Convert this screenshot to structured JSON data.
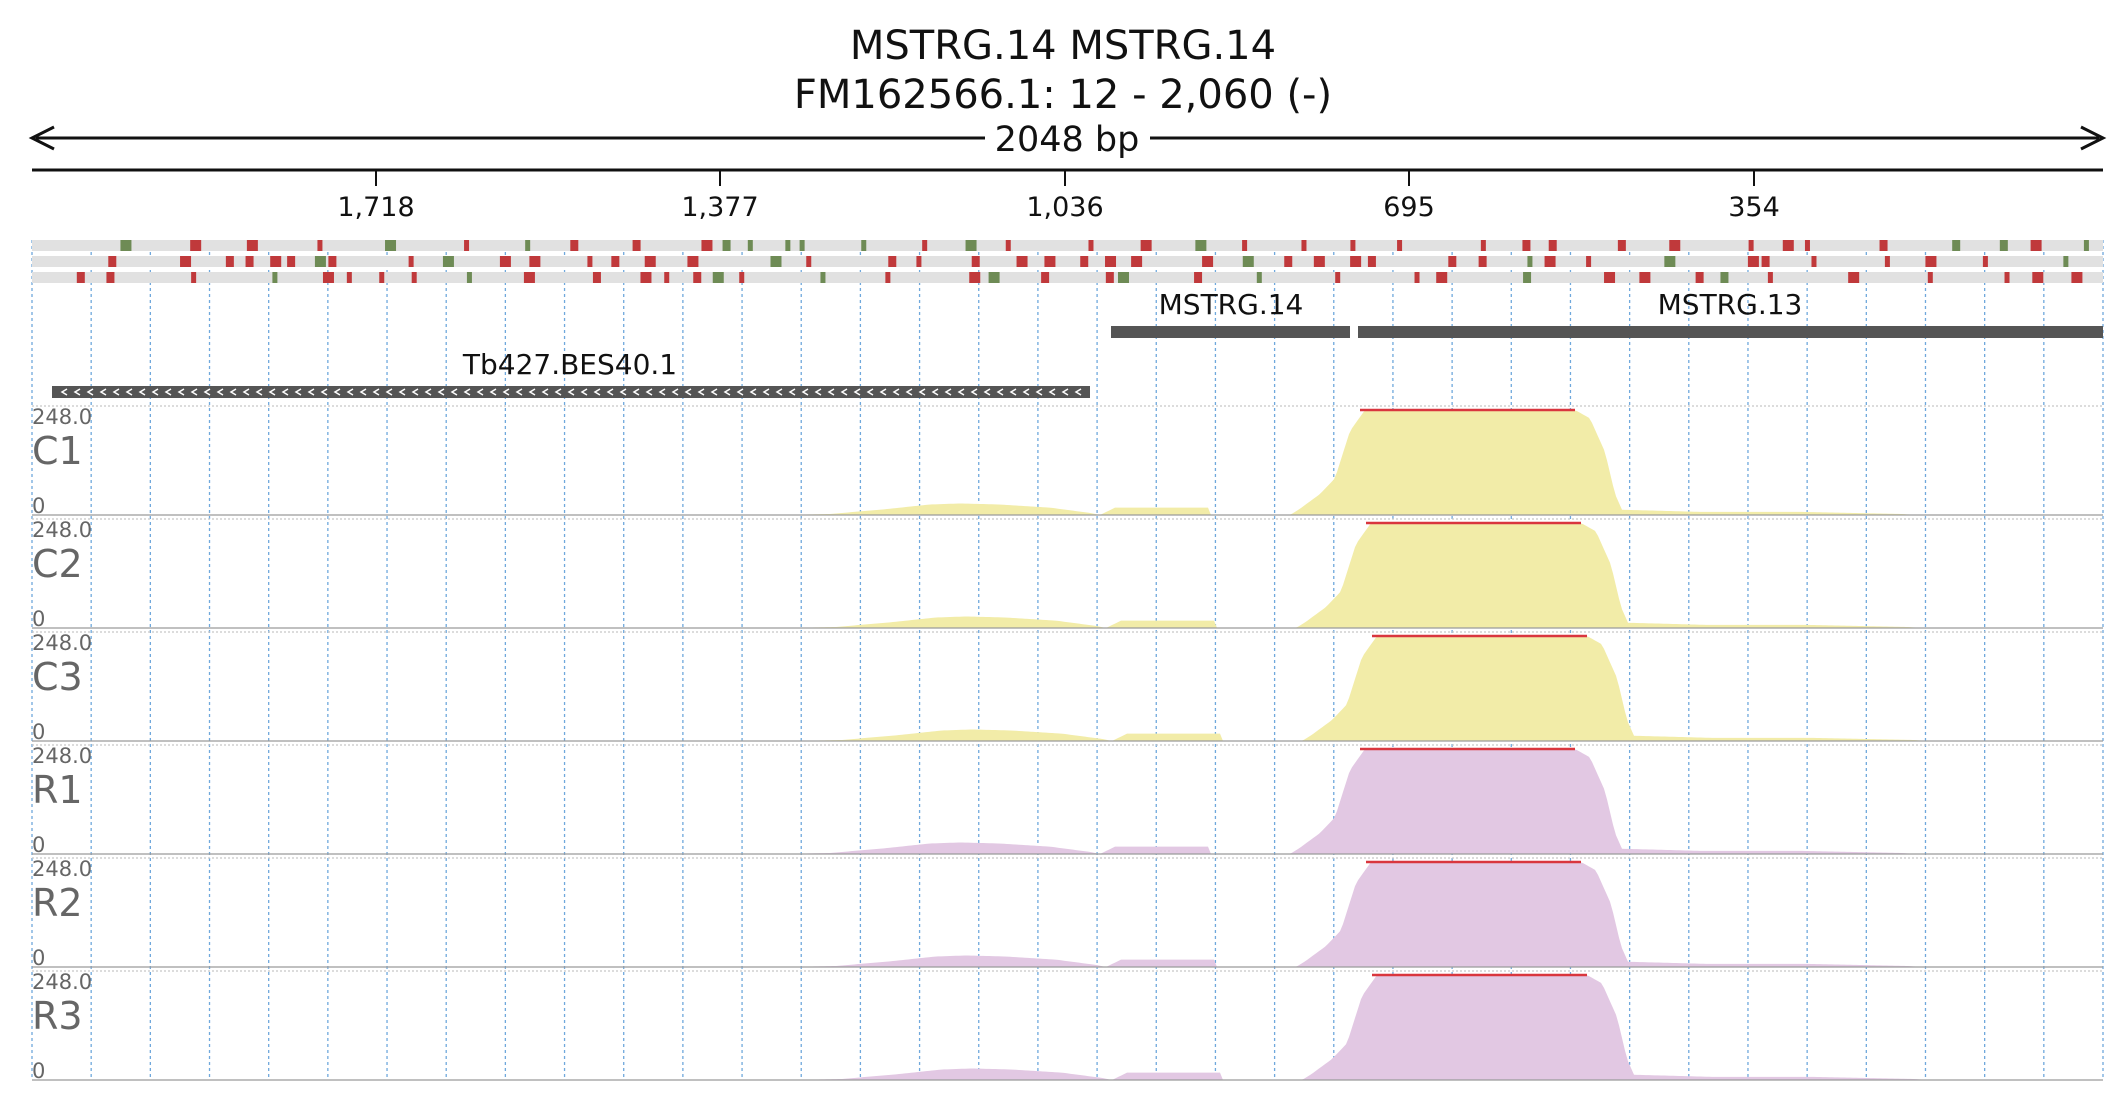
{
  "header": {
    "title": "MSTRG.14  MSTRG.14",
    "location": "FM162566.1: 12 - 2,060 (-)"
  },
  "span_label": "2048 bp",
  "ruler": {
    "ticks": [
      "1,718",
      "1,377",
      "1,036",
      "695",
      "354"
    ]
  },
  "colors": {
    "control_fill": "#f2eca8",
    "treated_fill": "#e2c8e3",
    "saturation": "#d9363e",
    "variant_red": "#c0393b",
    "variant_green": "#6e8b55",
    "gene": "#555555",
    "grid": "#6fa8dc"
  },
  "genes": [
    {
      "name": "MSTRG.14",
      "strand": "+"
    },
    {
      "name": "MSTRG.13",
      "strand": "+"
    },
    {
      "name": "Tb427.BES40.1",
      "strand": "-"
    }
  ],
  "tracks": [
    {
      "name": "C1",
      "max": "248.0",
      "min": "0",
      "group": "control"
    },
    {
      "name": "C2",
      "max": "248.0",
      "min": "0",
      "group": "control"
    },
    {
      "name": "C3",
      "max": "248.0",
      "min": "0",
      "group": "control"
    },
    {
      "name": "R1",
      "max": "248.0",
      "min": "0",
      "group": "treated"
    },
    {
      "name": "R2",
      "max": "248.0",
      "min": "0",
      "group": "treated"
    },
    {
      "name": "R3",
      "max": "248.0",
      "min": "0",
      "group": "treated"
    }
  ]
}
